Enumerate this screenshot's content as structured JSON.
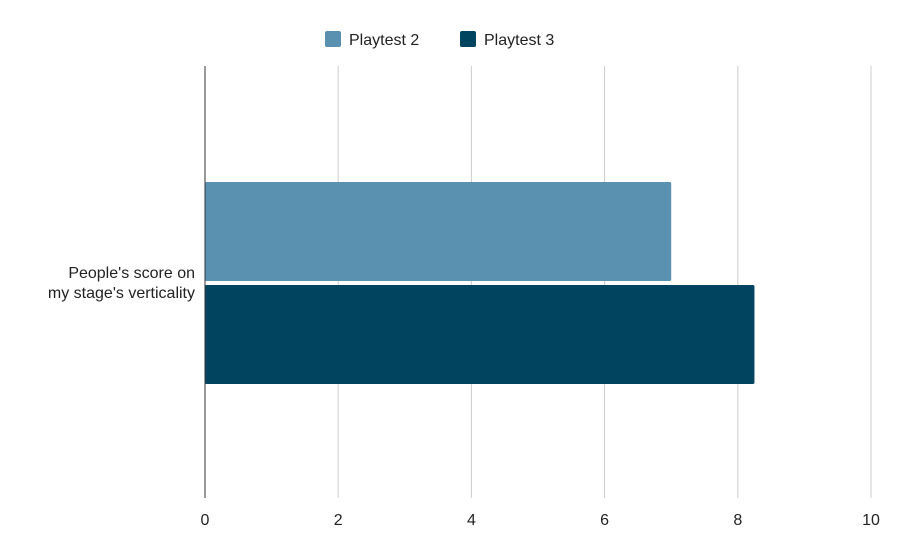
{
  "chart_data": {
    "type": "bar",
    "orientation": "horizontal",
    "title": "",
    "xlabel": "",
    "ylabel": "",
    "categories": [
      "People's score on my stage's verticality"
    ],
    "category_label_lines": [
      [
        "People's score on",
        "my stage's verticality"
      ]
    ],
    "series": [
      {
        "name": "Playtest 2",
        "values": [
          7.0
        ],
        "color": "#5a91b0"
      },
      {
        "name": "Playtest 3",
        "values": [
          8.25
        ],
        "color": "#004460"
      }
    ],
    "xlim": [
      0,
      10
    ],
    "xticks": [
      0,
      2,
      4,
      6,
      8,
      10
    ],
    "grid": true,
    "legend_position": "top-center"
  }
}
